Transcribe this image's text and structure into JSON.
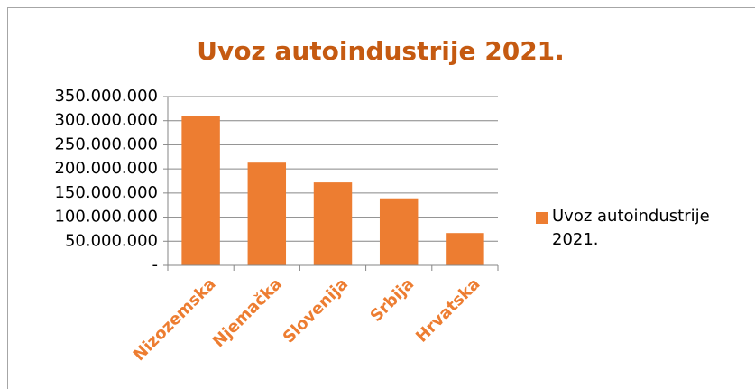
{
  "chart_data": {
    "type": "bar",
    "title": "Uvoz autoindustrije 2021.",
    "categories": [
      "Nizozemska",
      "Njemačka",
      "Slovenija",
      "Srbija",
      "Hrvatska"
    ],
    "series": [
      {
        "name": "Uvoz autoindustrije 2021.",
        "color": "#ed7d31",
        "values": [
          309000000,
          213000000,
          172000000,
          139000000,
          67000000
        ]
      }
    ],
    "ylim": [
      0,
      350000000
    ],
    "yticks": [
      {
        "value": 0,
        "label": "-"
      },
      {
        "value": 50000000,
        "label": "50.000.000"
      },
      {
        "value": 100000000,
        "label": "100.000.000"
      },
      {
        "value": 150000000,
        "label": "150.000.000"
      },
      {
        "value": 200000000,
        "label": "200.000.000"
      },
      {
        "value": 250000000,
        "label": "250.000.000"
      },
      {
        "value": 300000000,
        "label": "300.000.000"
      },
      {
        "value": 350000000,
        "label": "350.000.000"
      }
    ],
    "grid": true,
    "legend": "right"
  }
}
